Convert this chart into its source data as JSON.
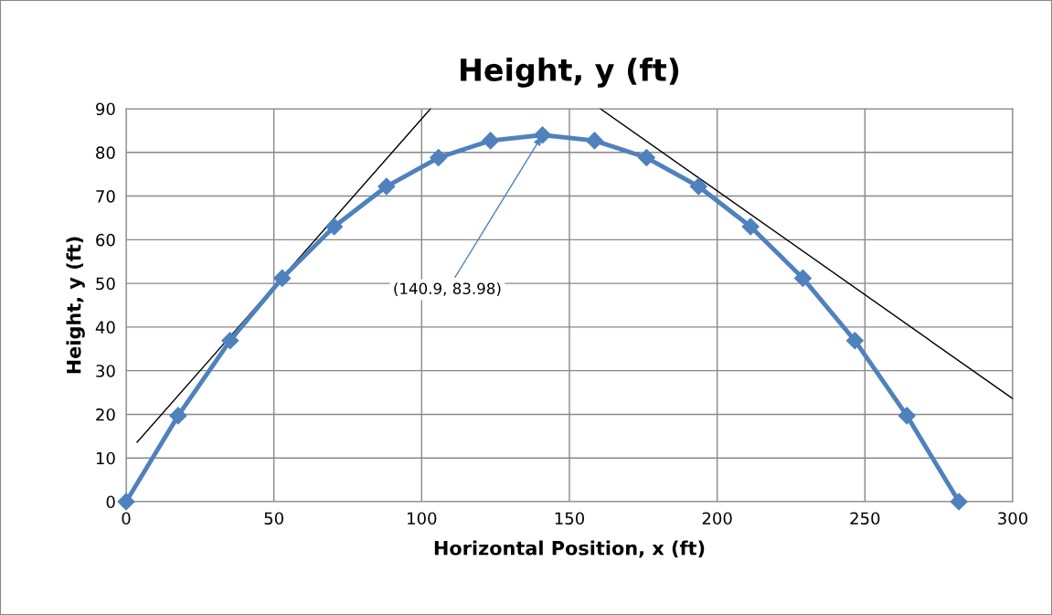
{
  "chart_data": {
    "type": "line",
    "title": "Height, y (ft)",
    "xlabel": "Horizontal Position, x (ft)",
    "ylabel": "Height, y (ft)",
    "series": [
      {
        "color": "#4f81bd",
        "marker": "diamond",
        "x": [
          0,
          17.6,
          35.2,
          52.8,
          70.4,
          88.1,
          105.7,
          123.3,
          140.9,
          158.5,
          176.1,
          193.7,
          211.3,
          229.0,
          246.6,
          264.2,
          281.8
        ],
        "values": [
          0,
          19.7,
          36.9,
          51.2,
          63.0,
          72.2,
          78.8,
          82.7,
          83.98,
          82.7,
          78.8,
          72.2,
          63.0,
          51.2,
          36.9,
          19.7,
          0
        ]
      },
      {
        "color": "#000000",
        "marker": "none",
        "x": [
          3.7,
          103
        ],
        "values": [
          13.6,
          90
        ]
      },
      {
        "color": "#000000",
        "marker": "none",
        "x": [
          160.5,
          300
        ],
        "values": [
          90,
          23.6
        ]
      }
    ],
    "annotations": [
      {
        "text": "(140.9, 83.98)",
        "x": 140.9,
        "y": 83.98
      }
    ],
    "xlim": [
      0,
      300
    ],
    "xticks": [
      0,
      50,
      100,
      150,
      200,
      250,
      300
    ],
    "ylim": [
      0,
      90
    ],
    "yticks": [
      0,
      10,
      20,
      30,
      40,
      50,
      60,
      70,
      80,
      90
    ],
    "grid": true
  }
}
